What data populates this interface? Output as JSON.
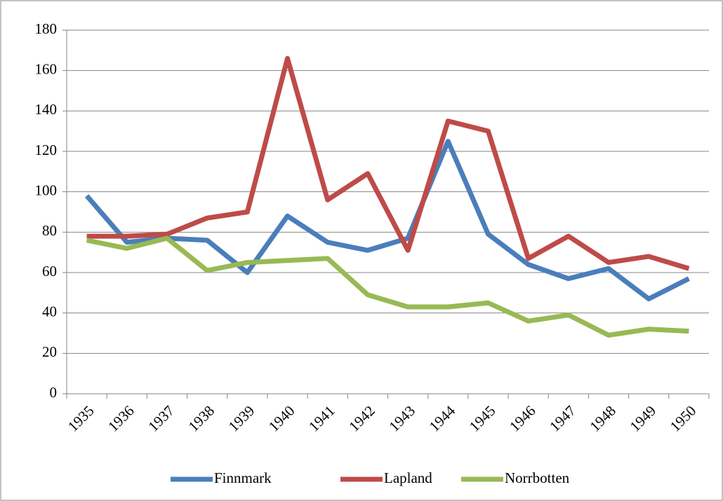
{
  "chart_data": {
    "type": "line",
    "categories": [
      "1935",
      "1936",
      "1937",
      "1938",
      "1939",
      "1940",
      "1941",
      "1942",
      "1943",
      "1944",
      "1945",
      "1946",
      "1947",
      "1948",
      "1949",
      "1950"
    ],
    "series": [
      {
        "name": "Finnmark",
        "color": "#4a7ebb",
        "values": [
          98,
          75,
          77,
          76,
          60,
          88,
          75,
          71,
          77,
          125,
          79,
          64,
          57,
          62,
          47,
          57
        ]
      },
      {
        "name": "Lapland",
        "color": "#be4b48",
        "values": [
          78,
          78,
          79,
          87,
          90,
          166,
          96,
          109,
          71,
          135,
          130,
          67,
          78,
          65,
          68,
          62
        ]
      },
      {
        "name": "Norrbotten",
        "color": "#98b954",
        "values": [
          76,
          72,
          77,
          61,
          65,
          66,
          67,
          49,
          43,
          43,
          45,
          36,
          39,
          29,
          32,
          31
        ]
      }
    ],
    "ylim": [
      0,
      180
    ],
    "yticks": [
      0,
      20,
      40,
      60,
      80,
      100,
      120,
      140,
      160,
      180
    ],
    "grid": true,
    "legend": "bottom"
  }
}
